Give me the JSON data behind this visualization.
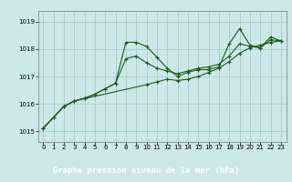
{
  "title": "Graphe pression niveau de la mer (hPa)",
  "background_color": "#cce8e8",
  "plot_bg_color": "#cce8e8",
  "grid_color": "#aacccc",
  "line_color": "#1a5c1a",
  "title_bg_color": "#1a5c1a",
  "title_text_color": "#ffffff",
  "xlim": [
    -0.5,
    23.5
  ],
  "ylim": [
    1014.6,
    1019.4
  ],
  "yticks": [
    1015,
    1016,
    1017,
    1018,
    1019
  ],
  "xticks": [
    0,
    1,
    2,
    3,
    4,
    5,
    6,
    7,
    8,
    9,
    10,
    11,
    12,
    13,
    14,
    15,
    16,
    17,
    18,
    19,
    20,
    21,
    22,
    23
  ],
  "series1_x": [
    0,
    1,
    2,
    3,
    4,
    5,
    6,
    7,
    8,
    9,
    10,
    11,
    12,
    13,
    14,
    15,
    16,
    17,
    18,
    19,
    20,
    21,
    22,
    23
  ],
  "series1_y": [
    1015.1,
    1015.5,
    1015.9,
    1016.1,
    1016.2,
    1016.35,
    1016.55,
    1016.75,
    1018.25,
    1018.25,
    1018.1,
    1017.7,
    1017.3,
    1017.0,
    1017.15,
    1017.25,
    1017.25,
    1017.35,
    1018.2,
    1018.75,
    1018.15,
    1018.05,
    1018.45,
    1018.3
  ],
  "series2_x": [
    0,
    1,
    2,
    3,
    4,
    5,
    6,
    7,
    8,
    9,
    10,
    11,
    12,
    13,
    14,
    15,
    16,
    17,
    18,
    19,
    20,
    21,
    22,
    23
  ],
  "series2_y": [
    1015.1,
    1015.5,
    1015.9,
    1016.1,
    1016.2,
    1016.35,
    1016.55,
    1016.75,
    1017.65,
    1017.75,
    1017.5,
    1017.3,
    1017.2,
    1017.1,
    1017.2,
    1017.3,
    1017.35,
    1017.45,
    1017.75,
    1018.2,
    1018.1,
    1018.05,
    1018.35,
    1018.3
  ],
  "series3_x": [
    0,
    2,
    3,
    10,
    11,
    12,
    13,
    14,
    15,
    16,
    17,
    18,
    19,
    20,
    21,
    22,
    23
  ],
  "series3_y": [
    1015.1,
    1015.9,
    1016.1,
    1016.7,
    1016.8,
    1016.9,
    1016.85,
    1016.9,
    1017.0,
    1017.15,
    1017.3,
    1017.55,
    1017.85,
    1018.05,
    1018.15,
    1018.25,
    1018.3
  ]
}
